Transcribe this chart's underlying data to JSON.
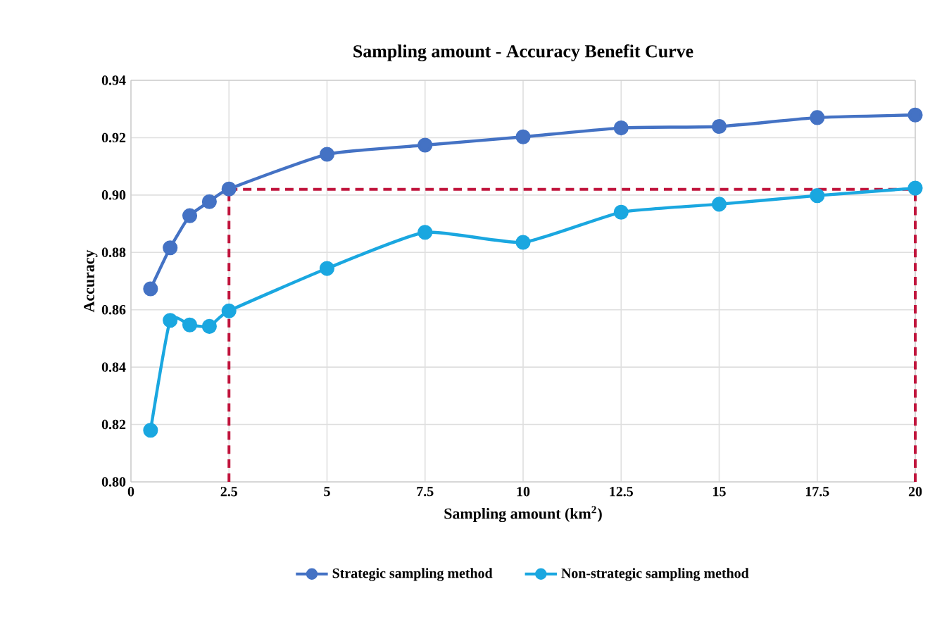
{
  "chart_data": {
    "type": "line",
    "title": "Sampling amount - Accuracy Benefit Curve",
    "xlabel": "Sampling amount (km$^{2}$)",
    "ylabel": "Accuracy",
    "xlim": [
      0,
      20
    ],
    "xticks": [
      0,
      2.5,
      5,
      7.5,
      10,
      12.5,
      15,
      17.5,
      20
    ],
    "ylim": [
      0.8,
      0.94
    ],
    "yticks": [
      {
        "value": 0.8,
        "label": "0.80"
      },
      0.82,
      0.84,
      0.86,
      0.88,
      {
        "value": 0.9,
        "label": "0.90"
      },
      0.92,
      0.94
    ],
    "grid": true,
    "legend": "bottom",
    "marker": "circle",
    "series": [
      {
        "name": "Strategic sampling method",
        "color": "#4472c4",
        "x": [
          0.5,
          1,
          1.5,
          2,
          2.5,
          5,
          7.5,
          10,
          12.5,
          15,
          17.5,
          20
        ],
        "values": [
          0.8673,
          0.8816,
          0.8928,
          0.8977,
          0.9021,
          0.9142,
          0.9174,
          0.9203,
          0.9234,
          0.9239,
          0.927,
          0.9279
        ]
      },
      {
        "name": "Non-strategic sampling method",
        "color": "#1aa7e0",
        "x": [
          0.5,
          1,
          1.5,
          2,
          2.5,
          5,
          7.5,
          10,
          12.5,
          15,
          17.5,
          20
        ],
        "values": [
          0.818,
          0.8563,
          0.8547,
          0.8542,
          0.8596,
          0.8744,
          0.887,
          0.8835,
          0.894,
          0.8968,
          0.8998,
          0.9024
        ]
      }
    ],
    "ref_lines": [
      {
        "axis": "y",
        "value": 0.902,
        "color": "#c0143c",
        "line_style": "dashed"
      },
      {
        "axis": "x",
        "value": 2.5,
        "color": "#c0143c",
        "line_style": "dashed"
      },
      {
        "axis": "x",
        "value": 20,
        "color": "#c0143c",
        "line_style": "dashed"
      }
    ]
  }
}
